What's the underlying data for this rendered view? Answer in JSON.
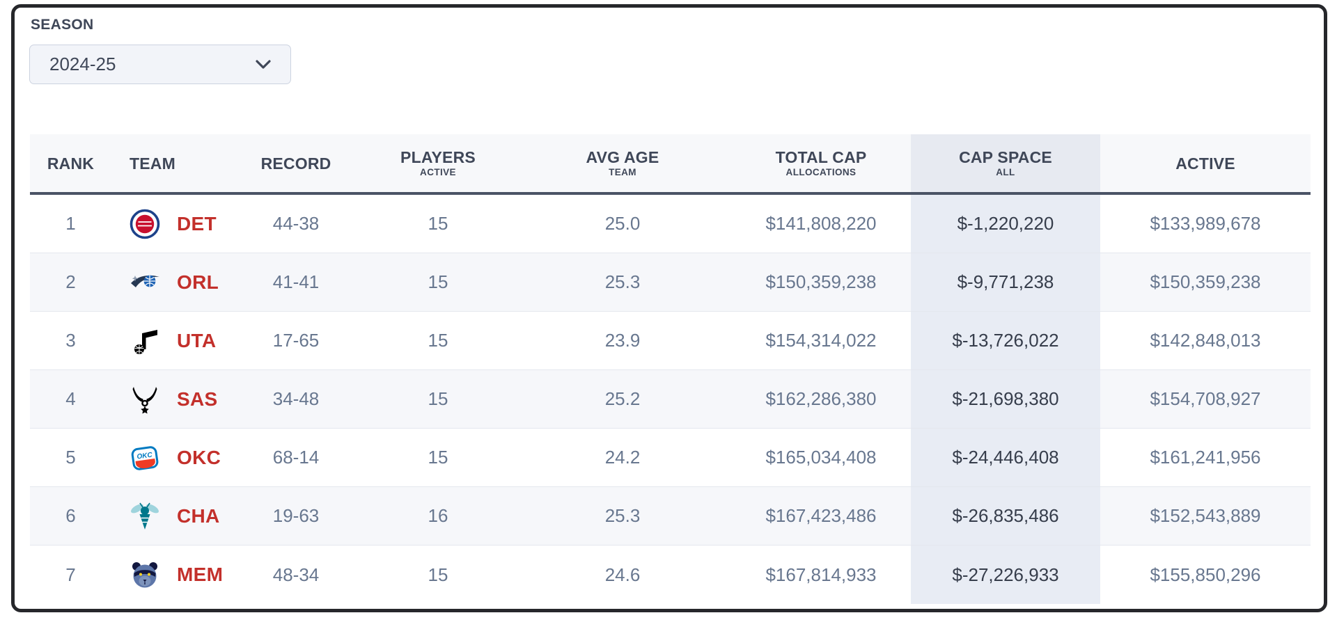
{
  "season": {
    "label": "SEASON",
    "value": "2024-25"
  },
  "colors": {
    "accent_red": "#c3302b",
    "header_text": "#3f4758",
    "value_text": "#68778f",
    "cap_text": "#363d4b",
    "highlight": "#e8ecf4",
    "stripe": "#f6f7fa",
    "header_underline": "#4a5365"
  },
  "table": {
    "columns": [
      {
        "key": "rank",
        "label": "RANK",
        "sublabel": "",
        "highlighted": false
      },
      {
        "key": "team",
        "label": "TEAM",
        "sublabel": "",
        "highlighted": false
      },
      {
        "key": "record",
        "label": "RECORD",
        "sublabel": "",
        "highlighted": false
      },
      {
        "key": "players",
        "label": "PLAYERS",
        "sublabel": "ACTIVE",
        "highlighted": false
      },
      {
        "key": "avg_age",
        "label": "AVG AGE",
        "sublabel": "TEAM",
        "highlighted": false
      },
      {
        "key": "total_cap",
        "label": "TOTAL CAP",
        "sublabel": "ALLOCATIONS",
        "highlighted": false
      },
      {
        "key": "cap_space",
        "label": "CAP SPACE",
        "sublabel": "ALL",
        "highlighted": true
      },
      {
        "key": "active",
        "label": "ACTIVE",
        "sublabel": "",
        "highlighted": false
      }
    ],
    "rows": [
      {
        "rank": "1",
        "team": {
          "abbr": "DET",
          "logo": "pistons-logo"
        },
        "record": "44-38",
        "players": "15",
        "avg_age": "25.0",
        "total_cap": "$141,808,220",
        "cap_space": "$-1,220,220",
        "active": "$133,989,678"
      },
      {
        "rank": "2",
        "team": {
          "abbr": "ORL",
          "logo": "magic-logo"
        },
        "record": "41-41",
        "players": "15",
        "avg_age": "25.3",
        "total_cap": "$150,359,238",
        "cap_space": "$-9,771,238",
        "active": "$150,359,238"
      },
      {
        "rank": "3",
        "team": {
          "abbr": "UTA",
          "logo": "jazz-logo"
        },
        "record": "17-65",
        "players": "15",
        "avg_age": "23.9",
        "total_cap": "$154,314,022",
        "cap_space": "$-13,726,022",
        "active": "$142,848,013"
      },
      {
        "rank": "4",
        "team": {
          "abbr": "SAS",
          "logo": "spurs-logo"
        },
        "record": "34-48",
        "players": "15",
        "avg_age": "25.2",
        "total_cap": "$162,286,380",
        "cap_space": "$-21,698,380",
        "active": "$154,708,927"
      },
      {
        "rank": "5",
        "team": {
          "abbr": "OKC",
          "logo": "thunder-logo"
        },
        "record": "68-14",
        "players": "15",
        "avg_age": "24.2",
        "total_cap": "$165,034,408",
        "cap_space": "$-24,446,408",
        "active": "$161,241,956"
      },
      {
        "rank": "6",
        "team": {
          "abbr": "CHA",
          "logo": "hornets-logo"
        },
        "record": "19-63",
        "players": "16",
        "avg_age": "25.3",
        "total_cap": "$167,423,486",
        "cap_space": "$-26,835,486",
        "active": "$152,543,889"
      },
      {
        "rank": "7",
        "team": {
          "abbr": "MEM",
          "logo": "grizzlies-logo"
        },
        "record": "48-34",
        "players": "15",
        "avg_age": "24.6",
        "total_cap": "$167,814,933",
        "cap_space": "$-27,226,933",
        "active": "$155,850,296"
      }
    ]
  }
}
